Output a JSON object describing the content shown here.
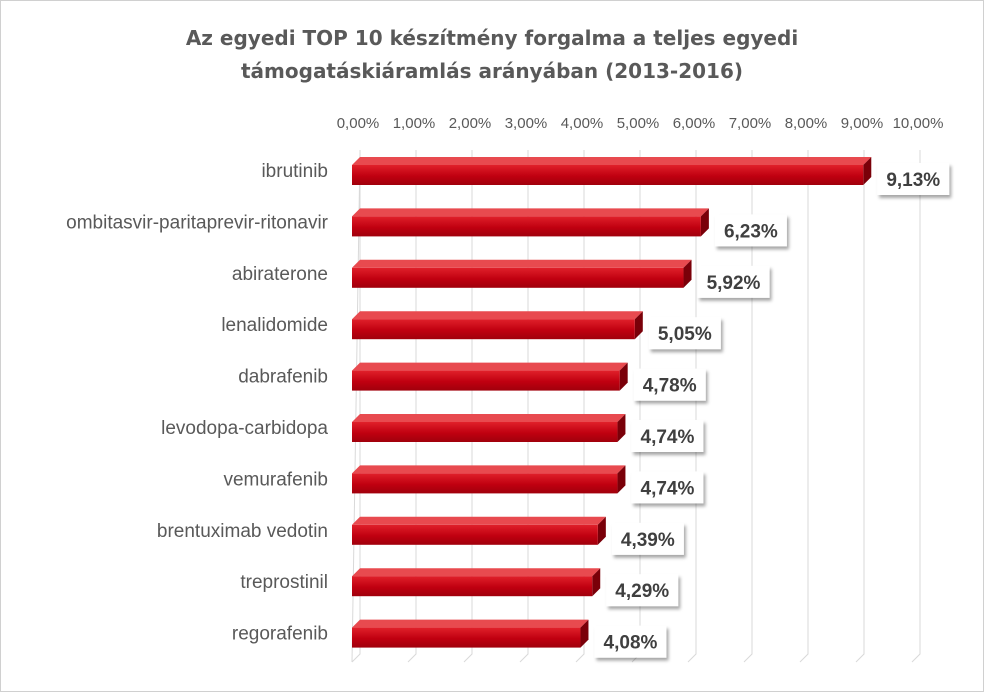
{
  "chart_data": {
    "type": "bar",
    "orientation": "horizontal",
    "title": "Az egyedi TOP 10 készítmény forgalma a teljes egyedi",
    "subtitle": "támogatáskiáramlás arányában (2013-2016)",
    "categories": [
      "ibrutinib",
      "ombitasvir-paritaprevir-ritonavir",
      "abiraterone",
      "lenalidomide",
      "dabrafenib",
      "levodopa-carbidopa",
      "vemurafenib",
      "brentuximab vedotin",
      "treprostinil",
      "regorafenib"
    ],
    "values": [
      9.13,
      6.23,
      5.92,
      5.05,
      4.78,
      4.74,
      4.74,
      4.39,
      4.29,
      4.08
    ],
    "data_labels": [
      "9,13%",
      "6,23%",
      "5,92%",
      "5,05%",
      "4,78%",
      "4,74%",
      "4,74%",
      "4,39%",
      "4,29%",
      "4,08%"
    ],
    "xlim": [
      0,
      10
    ],
    "xticks": [
      "0,00%",
      "1,00%",
      "2,00%",
      "3,00%",
      "4,00%",
      "5,00%",
      "6,00%",
      "7,00%",
      "8,00%",
      "9,00%",
      "10,00%"
    ],
    "x_axis_position": "top",
    "grid": true,
    "bar_color": "#c00000"
  }
}
